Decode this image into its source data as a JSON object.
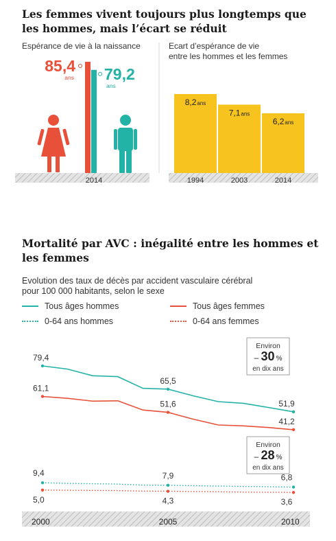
{
  "section1": {
    "title_line1": "Les femmes vivent toujours plus longtemps que",
    "title_line2": "les hommes, mais l’écart se réduit",
    "left_subtitle": "Espérance de vie à la naissance",
    "right_subtitle_line1": "Ecart d’espérance de vie",
    "right_subtitle_line2": "entre les hommes et les femmes"
  },
  "section2": {
    "title_line1": "Mortalité par AVC : inégalité entre les hommes et",
    "title_line2": "les femmes",
    "subtitle_line1": "Evolution des taux de décès par accident vasculaire cérébral",
    "subtitle_line2": "pour 100 000 habitants, selon le sexe"
  },
  "colors": {
    "women": "#e8503a",
    "men": "#23b2a6",
    "gap_bar": "#f7c31f",
    "ground": "#cfcfcf"
  },
  "icons": [
    "woman-icon",
    "man-icon"
  ],
  "chart_data": [
    {
      "type": "bar",
      "year": "2014",
      "unit": "ans",
      "categories": [
        "femmes",
        "hommes"
      ],
      "values": [
        85.4,
        79.2
      ],
      "value_labels": [
        "85,4",
        "79,2"
      ],
      "colors": [
        "#e8503a",
        "#23b2a6"
      ]
    },
    {
      "type": "bar",
      "unit": "ans",
      "categories": [
        "1994",
        "2003",
        "2014"
      ],
      "values": [
        8.2,
        7.1,
        6.2
      ],
      "value_labels": [
        "8,2",
        "7,1",
        "6,2"
      ],
      "ylim": [
        0,
        9.5
      ]
    },
    {
      "type": "line",
      "x_ticks": [
        "2000",
        "2005",
        "2010"
      ],
      "xlim": [
        2000,
        2010
      ],
      "ylim": [
        0,
        85
      ],
      "series": [
        {
          "name": "Tous âges hommes",
          "style": "solid",
          "color": "#23b2a6",
          "x": [
            2000,
            2001,
            2002,
            2003,
            2004,
            2005,
            2006,
            2007,
            2008,
            2009,
            2010
          ],
          "values": [
            79.4,
            77.5,
            73.5,
            73.0,
            66.0,
            65.5,
            61.5,
            58.0,
            57.0,
            54.5,
            51.9
          ],
          "labels": [
            {
              "x": 2000,
              "text": "79,4"
            },
            {
              "x": 2005,
              "text": "65,5"
            },
            {
              "x": 2010,
              "text": "51,9"
            }
          ]
        },
        {
          "name": "Tous âges femmes",
          "style": "solid",
          "color": "#e8503a",
          "x": [
            2000,
            2001,
            2002,
            2003,
            2004,
            2005,
            2006,
            2007,
            2008,
            2009,
            2010
          ],
          "values": [
            61.1,
            60.0,
            58.3,
            58.5,
            53.0,
            51.6,
            47.5,
            44.0,
            43.5,
            42.5,
            41.2
          ],
          "labels": [
            {
              "x": 2000,
              "text": "61,1"
            },
            {
              "x": 2005,
              "text": "51,6"
            },
            {
              "x": 2010,
              "text": "41,2"
            }
          ]
        },
        {
          "name": "0-64 ans hommes",
          "style": "dotted",
          "color": "#23b2a6",
          "x": [
            2000,
            2001,
            2002,
            2003,
            2004,
            2005,
            2006,
            2007,
            2008,
            2009,
            2010
          ],
          "values": [
            9.4,
            9.0,
            8.8,
            8.6,
            8.0,
            7.9,
            7.6,
            7.4,
            7.2,
            7.0,
            6.8
          ],
          "labels": [
            {
              "x": 2000,
              "text": "9,4"
            },
            {
              "x": 2005,
              "text": "7,9"
            },
            {
              "x": 2010,
              "text": "6,8"
            }
          ]
        },
        {
          "name": "0-64 ans femmes",
          "style": "dotted",
          "color": "#e8503a",
          "x": [
            2000,
            2001,
            2002,
            2003,
            2004,
            2005,
            2006,
            2007,
            2008,
            2009,
            2010
          ],
          "values": [
            5.0,
            4.9,
            4.8,
            4.7,
            4.4,
            4.3,
            4.1,
            4.0,
            3.8,
            3.7,
            3.6
          ],
          "labels": [
            {
              "x": 2000,
              "text": "5,0"
            },
            {
              "x": 2005,
              "text": "4,3"
            },
            {
              "x": 2010,
              "text": "3,6"
            }
          ]
        }
      ],
      "annotations": [
        {
          "line1": "Environ",
          "prefix": "–",
          "value": "30",
          "unit": "%",
          "line3": "en dix ans"
        },
        {
          "line1": "Environ",
          "prefix": "–",
          "value": "28",
          "unit": "%",
          "line3": "en dix ans"
        }
      ]
    }
  ]
}
